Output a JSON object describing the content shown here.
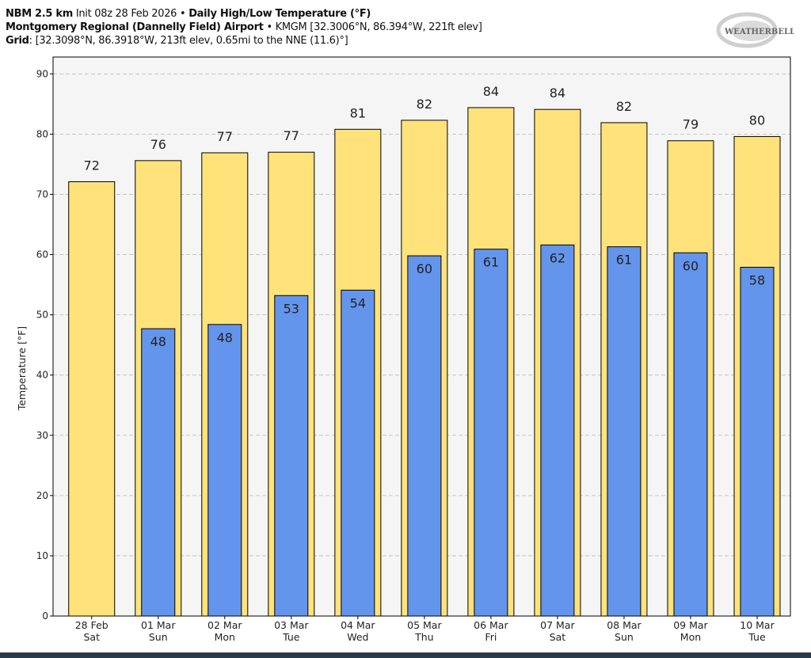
{
  "header": {
    "line1_bold1": "NBM 2.5 km",
    "line1_normal": " Init 08z 28 Feb 2026 • ",
    "line1_bold2": "Daily High/Low Temperature (°F)",
    "line2_bold": "Montgomery Regional (Dannelly Field) Airport",
    "line2_normal": " • KMGM [32.3006°N, 86.394°W, 221ft elev]",
    "line3_bold": "Grid",
    "line3_normal": ": [32.3098°N, 86.3918°W, 213ft elev, 0.65mi to the NNE (11.6)°]"
  },
  "logo": {
    "text": "WeatherBELL"
  },
  "chart_data": {
    "type": "bar",
    "ylabel": "Temperature [°F]",
    "ylim": [
      0,
      92.8
    ],
    "yticks": [
      0,
      10,
      20,
      30,
      40,
      50,
      60,
      70,
      80,
      90
    ],
    "grid": true,
    "categories": [
      [
        "28 Feb",
        "Sat"
      ],
      [
        "01 Mar",
        "Sun"
      ],
      [
        "02 Mar",
        "Mon"
      ],
      [
        "03 Mar",
        "Tue"
      ],
      [
        "04 Mar",
        "Wed"
      ],
      [
        "05 Mar",
        "Thu"
      ],
      [
        "06 Mar",
        "Fri"
      ],
      [
        "07 Mar",
        "Sat"
      ],
      [
        "08 Mar",
        "Sun"
      ],
      [
        "09 Mar",
        "Mon"
      ],
      [
        "10 Mar",
        "Tue"
      ]
    ],
    "series": [
      {
        "key": "high",
        "color": "#ffe27a",
        "values": [
          72.1,
          75.6,
          76.9,
          77.0,
          80.8,
          82.3,
          84.4,
          84.1,
          81.9,
          78.9,
          79.6
        ],
        "labels": [
          "72",
          "76",
          "77",
          "77",
          "81",
          "82",
          "84",
          "84",
          "82",
          "79",
          "80"
        ]
      },
      {
        "key": "low",
        "color": "#6495ed",
        "values": [
          null,
          47.7,
          48.4,
          53.2,
          54.1,
          59.8,
          60.9,
          61.6,
          61.3,
          60.3,
          57.9
        ],
        "labels": [
          null,
          "48",
          "48",
          "53",
          "54",
          "60",
          "61",
          "62",
          "61",
          "60",
          "58"
        ]
      }
    ]
  }
}
